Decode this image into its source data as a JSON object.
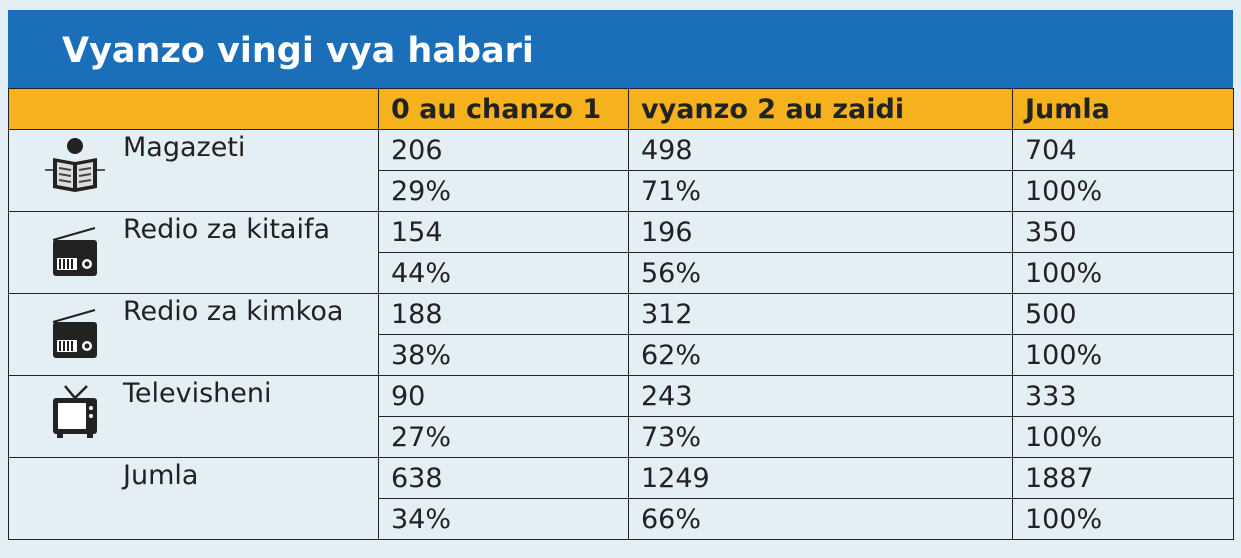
{
  "title": "Vyanzo vingi vya habari",
  "table": {
    "header": [
      "0 au chanzo 1",
      "vyanzo 2 au zaidi",
      "Jumla"
    ],
    "rows": [
      {
        "label": "Magazeti",
        "counts": [
          "206",
          "498",
          "704"
        ],
        "percents": [
          "29%",
          "71%",
          "100%"
        ]
      },
      {
        "label": "Redio za kitaifa",
        "counts": [
          "154",
          "196",
          "350"
        ],
        "percents": [
          "44%",
          "56%",
          "100%"
        ]
      },
      {
        "label": "Redio za kimkoa",
        "counts": [
          "188",
          "312",
          "500"
        ],
        "percents": [
          "38%",
          "62%",
          "100%"
        ]
      },
      {
        "label": "Televisheni",
        "counts": [
          "90",
          "243",
          "333"
        ],
        "percents": [
          "27%",
          "73%",
          "100%"
        ]
      },
      {
        "label": "Jumla",
        "counts": [
          "638",
          "1249",
          "1887"
        ],
        "percents": [
          "34%",
          "66%",
          "100%"
        ]
      }
    ]
  }
}
